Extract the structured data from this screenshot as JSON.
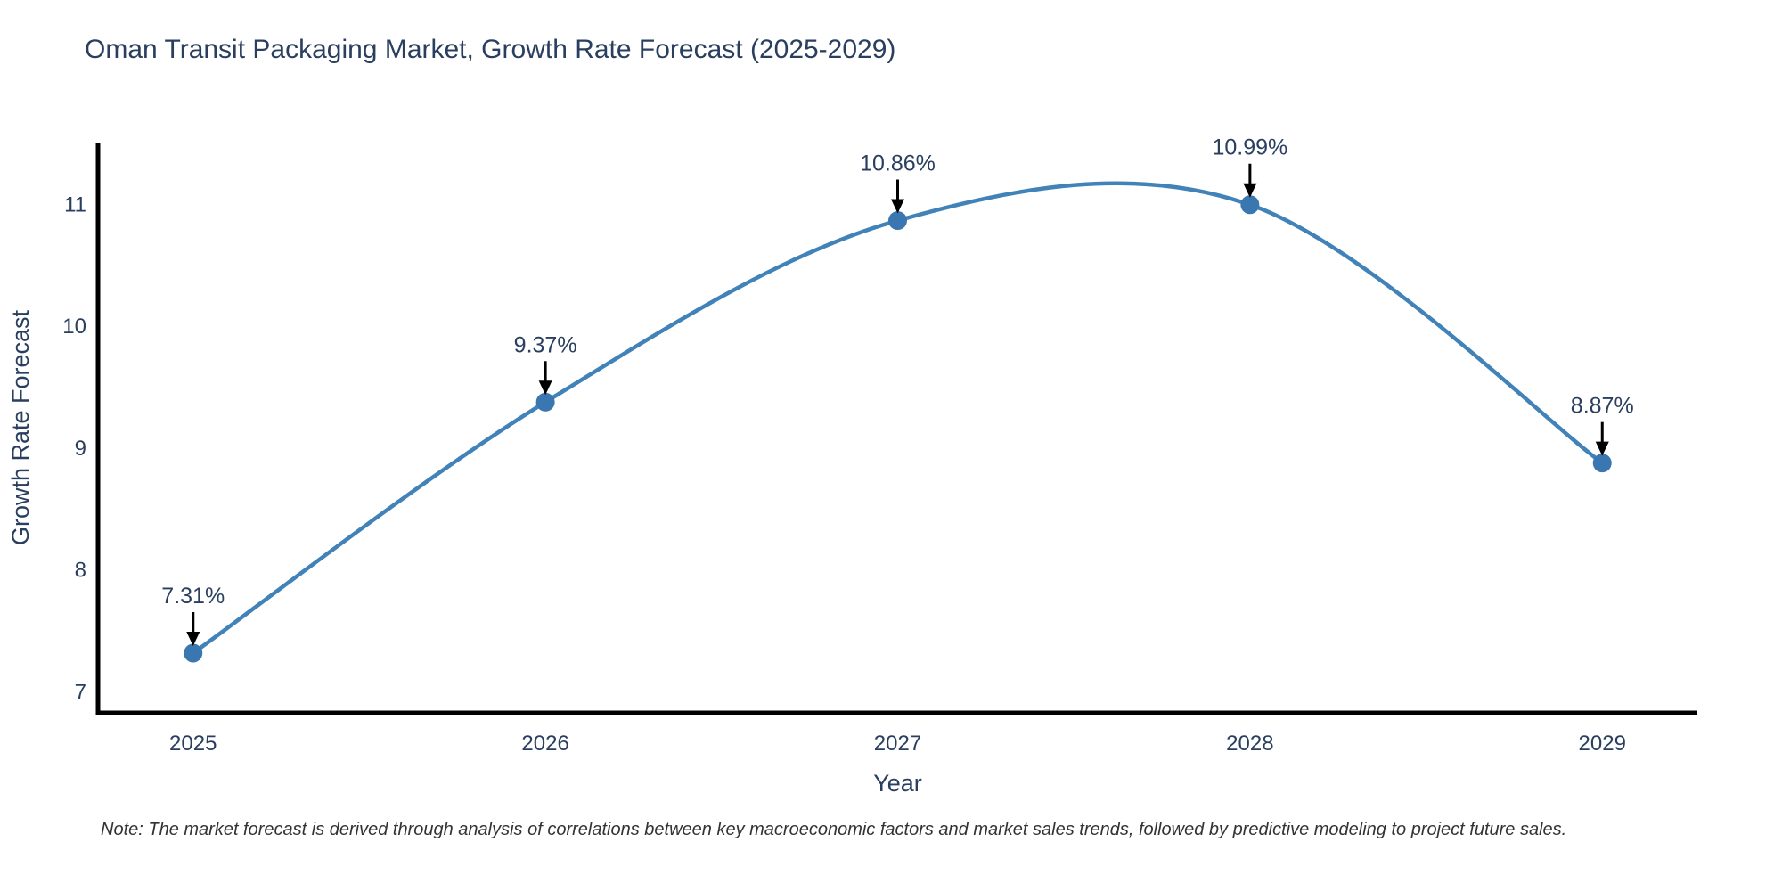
{
  "chart_data": {
    "type": "line",
    "title": "Oman Transit Packaging Market, Growth Rate Forecast (2025-2029)",
    "xlabel": "Year",
    "ylabel": "Growth Rate Forecast",
    "categories": [
      "2025",
      "2026",
      "2027",
      "2028",
      "2029"
    ],
    "x": [
      2025,
      2026,
      2027,
      2028,
      2029
    ],
    "values": [
      7.31,
      9.37,
      10.86,
      10.99,
      8.87
    ],
    "point_labels": [
      "7.31%",
      "9.37%",
      "10.86%",
      "10.99%",
      "8.87%"
    ],
    "y_ticks": [
      7,
      8,
      9,
      10,
      11
    ],
    "x_range": [
      2024.73,
      2029.27
    ],
    "y_range": [
      6.82,
      11.5
    ],
    "line_shape": "spline",
    "grid": false,
    "legend_position": "none",
    "colors": {
      "line": "#4182b8",
      "marker": "#3a76b0",
      "axis": "#000000",
      "text": "#2a3f5f",
      "annotation_arrow": "#000000"
    }
  },
  "note": {
    "text": "Note: The market forecast is derived through analysis of correlations between key macroeconomic factors and market sales trends, followed by predictive modeling to project future sales."
  }
}
